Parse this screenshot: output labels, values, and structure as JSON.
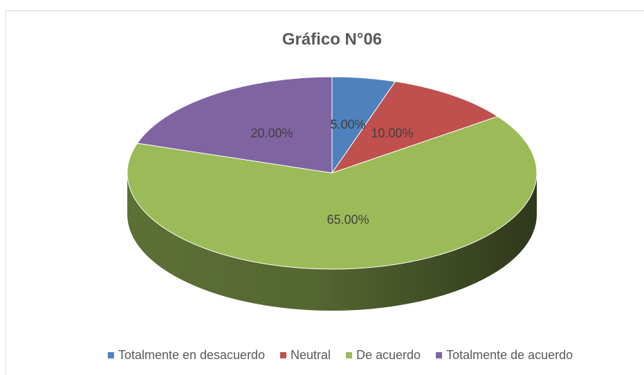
{
  "chart_data": {
    "type": "pie",
    "title": "Gráfico N°06",
    "categories": [
      "Totalmente en desacuerdo",
      "Neutral",
      "De acuerdo",
      "Totalmente de acuerdo"
    ],
    "values": [
      5,
      10,
      65,
      20
    ],
    "value_labels": [
      "5.00%",
      "10.00%",
      "65.00%",
      "20.00%"
    ],
    "colors": [
      "#4f81bd",
      "#c0504d",
      "#9bbb59",
      "#8064a2"
    ],
    "legend": "bottom"
  }
}
